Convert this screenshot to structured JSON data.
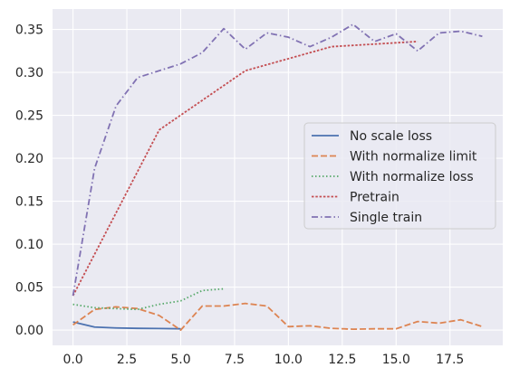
{
  "chart_data": {
    "type": "line",
    "title": "",
    "xlabel": "",
    "ylabel": "",
    "xlim": [
      -0.95,
      19.95
    ],
    "ylim": [
      -0.0178,
      0.3738
    ],
    "xticks": [
      0.0,
      2.5,
      5.0,
      7.5,
      10.0,
      12.5,
      15.0,
      17.5
    ],
    "xtick_labels": [
      "0.0",
      "2.5",
      "5.0",
      "7.5",
      "10.0",
      "12.5",
      "15.0",
      "17.5"
    ],
    "yticks": [
      0.0,
      0.05,
      0.1,
      0.15,
      0.2,
      0.25,
      0.3,
      0.35
    ],
    "ytick_labels": [
      "0.00",
      "0.05",
      "0.10",
      "0.15",
      "0.20",
      "0.25",
      "0.30",
      "0.35"
    ],
    "grid": true,
    "legend_position": "center-right",
    "background": "#eaeaf2",
    "series": [
      {
        "name": "No scale loss",
        "color": "#4c72b0",
        "dash": "solid",
        "x": [
          0,
          1,
          2,
          3,
          4,
          5
        ],
        "y": [
          0.0095,
          0.0035,
          0.0025,
          0.002,
          0.0018,
          0.0015
        ]
      },
      {
        "name": "With normalize limit",
        "color": "#dd8452",
        "dash": "dashed",
        "x": [
          0,
          1,
          2,
          3,
          4,
          5,
          6,
          7,
          8,
          9,
          10,
          11,
          12,
          13,
          14,
          15,
          16,
          17,
          18,
          19
        ],
        "y": [
          0.006,
          0.024,
          0.027,
          0.025,
          0.017,
          0.0,
          0.028,
          0.028,
          0.031,
          0.028,
          0.004,
          0.005,
          0.002,
          0.001,
          0.0015,
          0.0015,
          0.01,
          0.008,
          0.012,
          0.004
        ]
      },
      {
        "name": "With normalize loss",
        "color": "#55a868",
        "dash": "dotted",
        "x": [
          0,
          1,
          2,
          3,
          4,
          5,
          6,
          7
        ],
        "y": [
          0.03,
          0.026,
          0.025,
          0.024,
          0.03,
          0.034,
          0.046,
          0.048
        ]
      },
      {
        "name": "Pretrain",
        "color": "#c44e52",
        "dash": "dotted-dense",
        "x": [
          0,
          4,
          8,
          12,
          16
        ],
        "y": [
          0.04,
          0.233,
          0.302,
          0.33,
          0.336
        ]
      },
      {
        "name": "Single train",
        "color": "#8172b3",
        "dash": "dashdot",
        "x": [
          0,
          1,
          2,
          3,
          4,
          5,
          6,
          7,
          8,
          9,
          10,
          11,
          12,
          13,
          14,
          15,
          16,
          17,
          18,
          19
        ],
        "y": [
          0.04,
          0.188,
          0.261,
          0.294,
          0.302,
          0.31,
          0.323,
          0.351,
          0.327,
          0.346,
          0.341,
          0.33,
          0.341,
          0.356,
          0.336,
          0.345,
          0.325,
          0.346,
          0.348,
          0.342
        ]
      }
    ]
  }
}
